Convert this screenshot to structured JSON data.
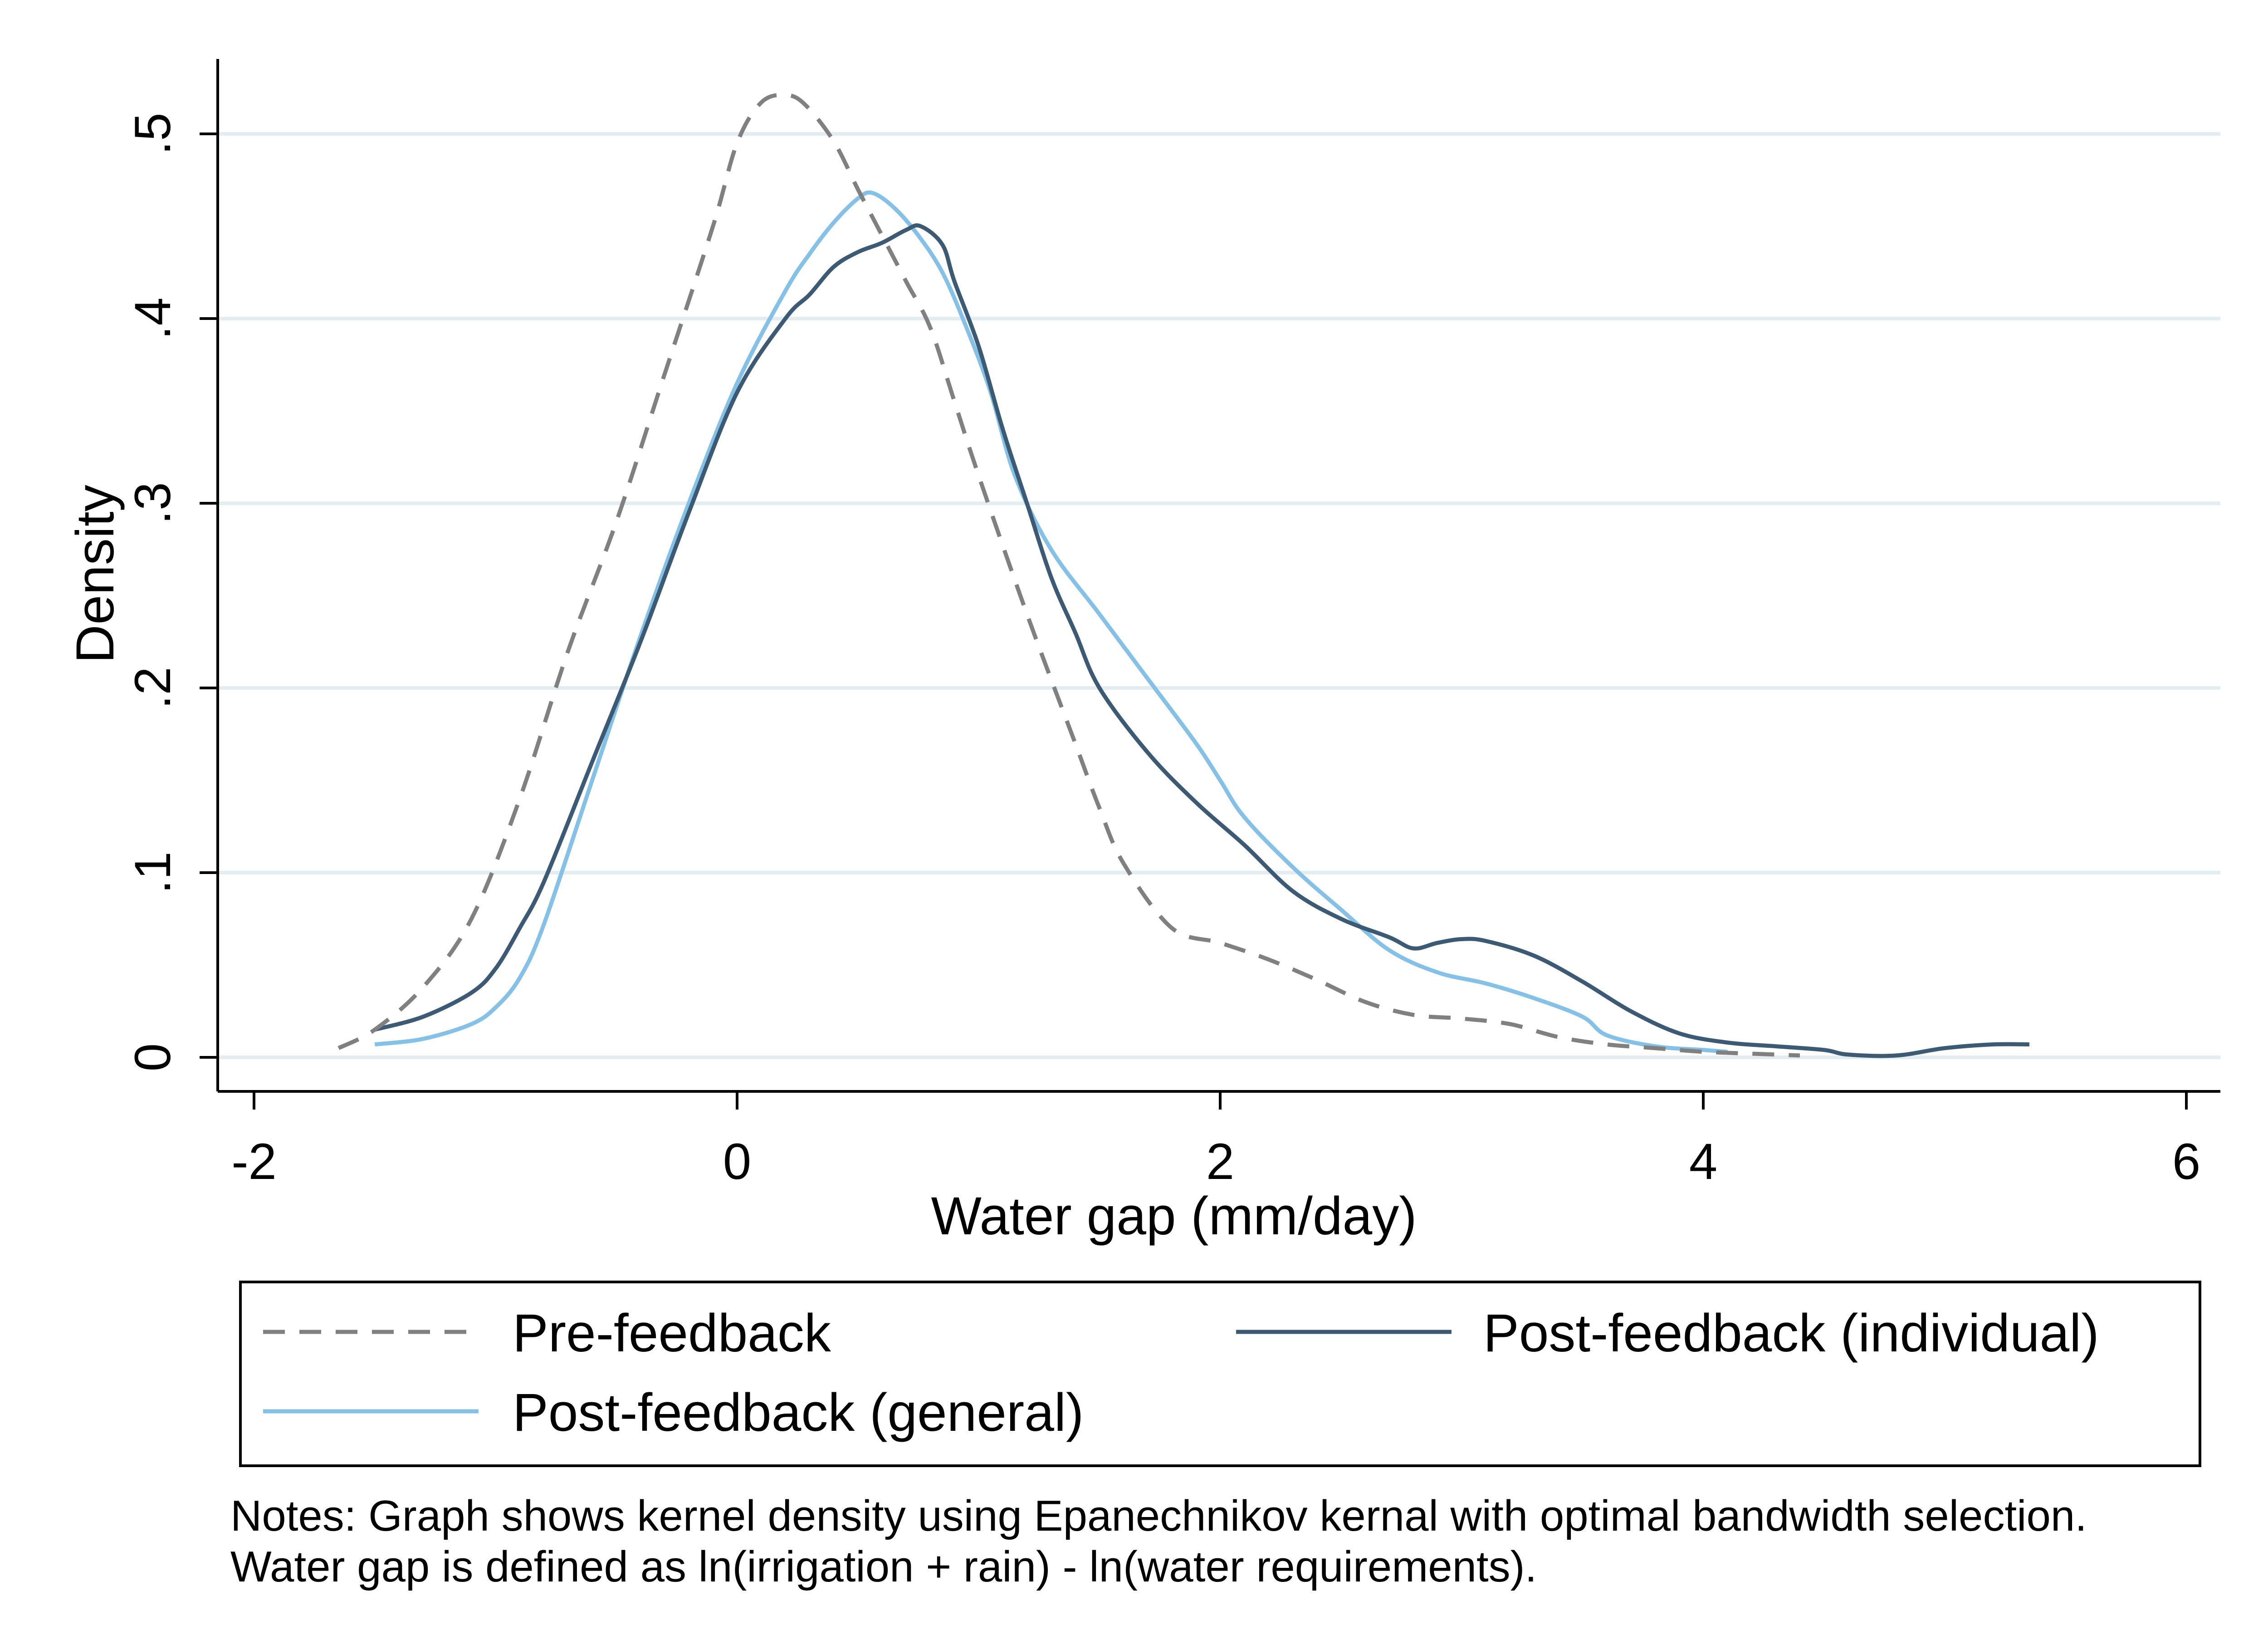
{
  "chart_data": {
    "type": "line",
    "title": "",
    "xlabel": "Water gap (mm/day)",
    "ylabel": "Density",
    "xlim": [
      -2,
      6
    ],
    "ylim": [
      0,
      0.5
    ],
    "x_ticks": [
      {
        "value": -2,
        "label": "-2"
      },
      {
        "value": 0,
        "label": "0"
      },
      {
        "value": 2,
        "label": "2"
      },
      {
        "value": 4,
        "label": "4"
      },
      {
        "value": 6,
        "label": "6"
      }
    ],
    "y_ticks": [
      {
        "value": 0,
        "label": "0"
      },
      {
        "value": 0.1,
        "label": ".1"
      },
      {
        "value": 0.2,
        "label": ".2"
      },
      {
        "value": 0.3,
        "label": ".3"
      },
      {
        "value": 0.4,
        "label": ".4"
      },
      {
        "value": 0.5,
        "label": ".5"
      }
    ],
    "grid": "horizontal",
    "legend_position": "bottom",
    "series": [
      {
        "name": "Pre-feedback",
        "color": "#808080",
        "style": "dashed",
        "points": [
          [
            -1.65,
            0.005
          ],
          [
            -1.5,
            0.015
          ],
          [
            -1.3,
            0.038
          ],
          [
            -1.1,
            0.075
          ],
          [
            -0.9,
            0.14
          ],
          [
            -0.7,
            0.22
          ],
          [
            -0.5,
            0.29
          ],
          [
            -0.3,
            0.37
          ],
          [
            -0.1,
            0.45
          ],
          [
            0.0,
            0.495
          ],
          [
            0.1,
            0.517
          ],
          [
            0.2,
            0.521
          ],
          [
            0.28,
            0.516
          ],
          [
            0.4,
            0.496
          ],
          [
            0.5,
            0.47
          ],
          [
            0.6,
            0.445
          ],
          [
            0.7,
            0.42
          ],
          [
            0.8,
            0.395
          ],
          [
            0.9,
            0.355
          ],
          [
            1.0,
            0.315
          ],
          [
            1.2,
            0.24
          ],
          [
            1.4,
            0.17
          ],
          [
            1.5,
            0.135
          ],
          [
            1.6,
            0.105
          ],
          [
            1.8,
            0.07
          ],
          [
            2.0,
            0.062
          ],
          [
            2.2,
            0.053
          ],
          [
            2.4,
            0.042
          ],
          [
            2.6,
            0.03
          ],
          [
            2.8,
            0.023
          ],
          [
            3.0,
            0.021
          ],
          [
            3.2,
            0.018
          ],
          [
            3.4,
            0.011
          ],
          [
            3.6,
            0.007
          ],
          [
            3.8,
            0.005
          ],
          [
            4.0,
            0.003
          ],
          [
            4.2,
            0.002
          ],
          [
            4.4,
            0.001
          ]
        ]
      },
      {
        "name": "Post-feedback (individual)",
        "color": "#3c5a74",
        "style": "solid",
        "points": [
          [
            -1.5,
            0.015
          ],
          [
            -1.3,
            0.022
          ],
          [
            -1.1,
            0.035
          ],
          [
            -1.0,
            0.048
          ],
          [
            -0.9,
            0.07
          ],
          [
            -0.8,
            0.095
          ],
          [
            -0.6,
            0.16
          ],
          [
            -0.4,
            0.225
          ],
          [
            -0.2,
            0.295
          ],
          [
            0.0,
            0.36
          ],
          [
            0.2,
            0.4
          ],
          [
            0.3,
            0.413
          ],
          [
            0.4,
            0.428
          ],
          [
            0.5,
            0.436
          ],
          [
            0.6,
            0.441
          ],
          [
            0.7,
            0.448
          ],
          [
            0.76,
            0.45
          ],
          [
            0.85,
            0.44
          ],
          [
            0.9,
            0.42
          ],
          [
            1.0,
            0.385
          ],
          [
            1.1,
            0.34
          ],
          [
            1.2,
            0.3
          ],
          [
            1.3,
            0.26
          ],
          [
            1.4,
            0.23
          ],
          [
            1.5,
            0.2
          ],
          [
            1.7,
            0.165
          ],
          [
            1.9,
            0.138
          ],
          [
            2.1,
            0.115
          ],
          [
            2.3,
            0.09
          ],
          [
            2.5,
            0.075
          ],
          [
            2.7,
            0.065
          ],
          [
            2.8,
            0.059
          ],
          [
            2.9,
            0.062
          ],
          [
            3.0,
            0.064
          ],
          [
            3.1,
            0.063
          ],
          [
            3.3,
            0.055
          ],
          [
            3.5,
            0.041
          ],
          [
            3.7,
            0.025
          ],
          [
            3.9,
            0.013
          ],
          [
            4.1,
            0.008
          ],
          [
            4.3,
            0.006
          ],
          [
            4.5,
            0.004
          ],
          [
            4.6,
            0.0015
          ],
          [
            4.8,
            0.001
          ],
          [
            5.0,
            0.005
          ],
          [
            5.2,
            0.007
          ],
          [
            5.35,
            0.007
          ]
        ]
      },
      {
        "name": "Post-feedback (general)",
        "color": "#85c0e6",
        "style": "solid",
        "points": [
          [
            -1.5,
            0.007
          ],
          [
            -1.3,
            0.01
          ],
          [
            -1.1,
            0.018
          ],
          [
            -1.0,
            0.027
          ],
          [
            -0.9,
            0.043
          ],
          [
            -0.8,
            0.072
          ],
          [
            -0.6,
            0.15
          ],
          [
            -0.4,
            0.228
          ],
          [
            -0.2,
            0.3
          ],
          [
            0.0,
            0.365
          ],
          [
            0.2,
            0.415
          ],
          [
            0.3,
            0.435
          ],
          [
            0.4,
            0.452
          ],
          [
            0.5,
            0.465
          ],
          [
            0.56,
            0.468
          ],
          [
            0.65,
            0.46
          ],
          [
            0.75,
            0.445
          ],
          [
            0.85,
            0.425
          ],
          [
            0.95,
            0.395
          ],
          [
            1.05,
            0.36
          ],
          [
            1.15,
            0.315
          ],
          [
            1.3,
            0.275
          ],
          [
            1.5,
            0.24
          ],
          [
            1.7,
            0.205
          ],
          [
            1.9,
            0.17
          ],
          [
            2.0,
            0.15
          ],
          [
            2.1,
            0.13
          ],
          [
            2.3,
            0.103
          ],
          [
            2.5,
            0.08
          ],
          [
            2.7,
            0.058
          ],
          [
            2.9,
            0.046
          ],
          [
            3.1,
            0.04
          ],
          [
            3.3,
            0.032
          ],
          [
            3.5,
            0.022
          ],
          [
            3.6,
            0.012
          ],
          [
            3.8,
            0.006
          ],
          [
            4.0,
            0.004
          ],
          [
            4.1,
            0.003
          ]
        ]
      }
    ],
    "notes": [
      "Notes: Graph shows kernel density using Epanechnikov kernal with optimal bandwidth selection.",
      "Water gap is defined as ln(irrigation + rain) - ln(water requirements)."
    ]
  }
}
